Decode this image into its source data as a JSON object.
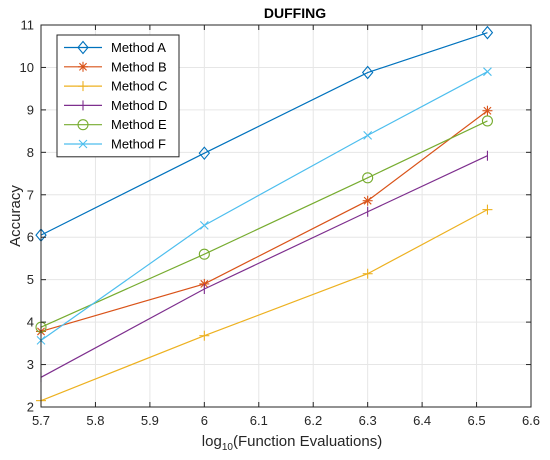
{
  "chart_data": {
    "type": "line",
    "title": "DUFFING",
    "xlabel_prefix": "log",
    "xlabel_sub": "10",
    "xlabel_suffix": "(Function Evaluations)",
    "ylabel": "Accuracy",
    "xlim": [
      5.7,
      6.6
    ],
    "ylim": [
      2,
      11
    ],
    "xticks": [
      5.7,
      5.8,
      5.9,
      6.0,
      6.1,
      6.2,
      6.3,
      6.4,
      6.5,
      6.6
    ],
    "xtick_labels": [
      "5.7",
      "5.8",
      "5.9",
      "6",
      "6.1",
      "6.2",
      "6.3",
      "6.4",
      "6.5",
      "6.6"
    ],
    "yticks": [
      2,
      3,
      4,
      5,
      6,
      7,
      8,
      9,
      10,
      11
    ],
    "ytick_labels": [
      "2",
      "3",
      "4",
      "5",
      "6",
      "7",
      "8",
      "9",
      "10",
      "11"
    ],
    "grid": true,
    "legend_position": "top-left",
    "x": [
      5.7,
      6.0,
      6.3,
      6.52
    ],
    "series": [
      {
        "name": "Method A",
        "color": "#0072BD",
        "marker": "diamond",
        "values": [
          6.05,
          7.98,
          9.88,
          10.82
        ]
      },
      {
        "name": "Method B",
        "color": "#D95319",
        "marker": "asterisk",
        "values": [
          3.78,
          4.9,
          6.86,
          8.98
        ]
      },
      {
        "name": "Method C",
        "color": "#EDB120",
        "marker": "plus",
        "values": [
          2.15,
          3.68,
          5.14,
          6.65
        ]
      },
      {
        "name": "Method D",
        "color": "#7E2F8E",
        "marker": "vline",
        "values": [
          2.7,
          4.78,
          6.6,
          7.92
        ]
      },
      {
        "name": "Method E",
        "color": "#77AC30",
        "marker": "circle",
        "values": [
          3.88,
          5.6,
          7.4,
          8.74
        ]
      },
      {
        "name": "Method F",
        "color": "#4DBEEE",
        "marker": "x",
        "values": [
          3.57,
          6.28,
          8.4,
          9.9
        ]
      }
    ]
  }
}
